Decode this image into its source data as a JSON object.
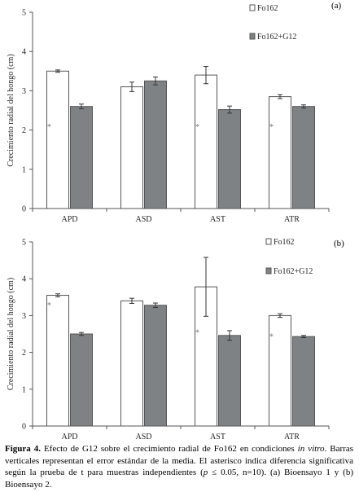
{
  "chart_data": [
    {
      "panel_label": "(a)",
      "type": "bar",
      "ylabel": "Crecimiento radial del hongo (cm)",
      "ylim": [
        0,
        5
      ],
      "yticks": [
        0,
        1,
        2,
        3,
        4,
        5
      ],
      "categories": [
        "APD",
        "ASD",
        "AST",
        "ATR"
      ],
      "legend_position": "top-right",
      "grid": false,
      "series": [
        {
          "name": "Fo162",
          "color": "#ffffff",
          "values": [
            3.5,
            3.1,
            3.4,
            2.85
          ],
          "errors": [
            0.03,
            0.12,
            0.22,
            0.05
          ]
        },
        {
          "name": "Fo162+G12",
          "color": "#7f8285",
          "values": [
            2.6,
            3.25,
            2.52,
            2.6
          ],
          "errors": [
            0.06,
            0.1,
            0.09,
            0.04
          ]
        }
      ],
      "significance": [
        {
          "category": "APD",
          "symbol": "*",
          "y": 2.1
        },
        {
          "category": "AST",
          "symbol": "*",
          "y": 2.1
        },
        {
          "category": "ATR",
          "symbol": "*",
          "y": 2.1
        }
      ]
    },
    {
      "panel_label": "(b)",
      "type": "bar",
      "ylabel": "Crecimiento radial del hongo (cm)",
      "ylim": [
        0,
        5
      ],
      "yticks": [
        0,
        1,
        2,
        3,
        4,
        5
      ],
      "categories": [
        "APD",
        "ASD",
        "AST",
        "ATR"
      ],
      "legend_position": "top-right",
      "grid": false,
      "series": [
        {
          "name": "Fo162",
          "color": "#ffffff",
          "values": [
            3.55,
            3.4,
            3.78,
            3.0
          ],
          "errors": [
            0.04,
            0.07,
            0.8,
            0.05
          ]
        },
        {
          "name": "Fo162+G12",
          "color": "#7f8285",
          "values": [
            2.5,
            3.28,
            2.46,
            2.43
          ],
          "errors": [
            0.04,
            0.06,
            0.13,
            0.03
          ]
        }
      ],
      "significance": [
        {
          "category": "APD",
          "symbol": "*",
          "y": 3.3
        },
        {
          "category": "AST",
          "symbol": "*",
          "y": 2.55
        },
        {
          "category": "ATR",
          "symbol": "*",
          "y": 2.45
        }
      ]
    }
  ],
  "caption": {
    "label": "Figura 4.",
    "text_1": " Efecto de G12 sobre el crecimiento radial de Fo162 en condiciones ",
    "italic_1": "in vitro",
    "text_2": ". Barras verticales representan el error estándar de la media. El asterisco indica diferencia significativa según la prueba de t para muestras independientes (",
    "italic_2": "p",
    "text_3": " ≤ 0.05, n=10). (a) Bioensayo 1 y (b) Bioensayo 2."
  }
}
